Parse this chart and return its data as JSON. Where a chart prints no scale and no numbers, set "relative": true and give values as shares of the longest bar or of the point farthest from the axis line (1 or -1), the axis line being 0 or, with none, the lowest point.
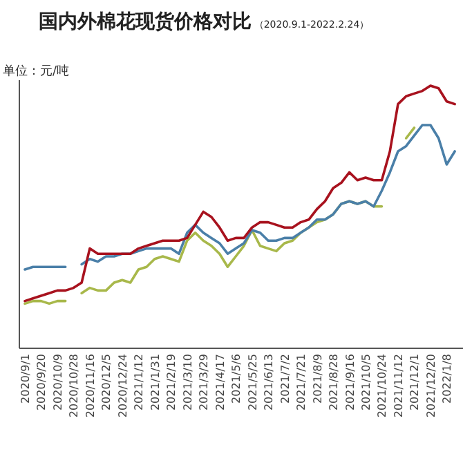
{
  "chart_data": {
    "type": "line",
    "title": "国内外棉花现货价格对比",
    "subtitle": "（2020.9.1-2022.2.24）",
    "ylabel": "单位：元/吨",
    "relative": true,
    "grid": false,
    "marker": "none",
    "line_style": "solid",
    "categories": [
      "2020/9/1",
      null,
      "2020/9/20",
      null,
      "2020/10/9",
      null,
      "2020/10/28",
      null,
      "2020/11/16",
      null,
      "2020/12/5",
      null,
      "2020/12/24",
      null,
      "2021/1/12",
      null,
      "2021/1/31",
      null,
      "2021/2/19",
      null,
      "2021/3/10",
      null,
      "2021/3/29",
      null,
      "2021/4/17",
      null,
      "2021/5/6",
      null,
      "2021/5/25",
      null,
      "2021/6/13",
      null,
      "2021/7/2",
      null,
      "2021/7/21",
      null,
      "2021/8/9",
      null,
      "2021/8/28",
      null,
      "2021/9/16",
      null,
      "2021/10/5",
      null,
      "2021/10/24",
      null,
      "2021/11/12",
      null,
      "2021/12/1",
      null,
      "2021/12/20",
      null,
      "2022/1/8",
      null
    ],
    "series": [
      {
        "color": "#a8121e",
        "values": [
          0.18,
          0.19,
          0.2,
          0.21,
          0.22,
          0.22,
          0.23,
          0.25,
          0.38,
          0.36,
          0.36,
          0.36,
          0.36,
          0.36,
          0.38,
          0.39,
          0.4,
          0.41,
          0.41,
          0.41,
          0.42,
          0.47,
          0.52,
          0.5,
          0.46,
          0.41,
          0.42,
          0.42,
          0.46,
          0.48,
          0.48,
          0.47,
          0.46,
          0.46,
          0.48,
          0.49,
          0.53,
          0.56,
          0.61,
          0.63,
          0.67,
          0.64,
          0.65,
          0.64,
          0.64,
          0.75,
          0.93,
          0.96,
          0.97,
          0.98,
          1,
          0.99,
          0.94,
          0.93
        ]
      },
      {
        "color": "#4a7fa8",
        "values": [
          0.3,
          0.31,
          0.31,
          0.31,
          0.31,
          0.31,
          null,
          0.32,
          0.34,
          0.33,
          0.35,
          0.35,
          0.36,
          0.36,
          0.37,
          0.38,
          0.38,
          0.38,
          0.38,
          0.36,
          0.44,
          0.47,
          0.44,
          0.42,
          0.4,
          0.36,
          0.38,
          0.4,
          0.45,
          0.44,
          0.41,
          0.41,
          0.42,
          0.42,
          0.44,
          0.46,
          0.49,
          0.49,
          0.51,
          0.55,
          0.56,
          0.55,
          0.56,
          0.54,
          0.6,
          0.67,
          0.75,
          0.77,
          0.81,
          0.85,
          0.85,
          0.8,
          0.7,
          0.75
        ]
      },
      {
        "color": "#a8b84a",
        "values": [
          0.17,
          0.18,
          0.18,
          0.17,
          0.18,
          0.18,
          null,
          0.21,
          0.23,
          0.22,
          0.22,
          0.25,
          0.26,
          0.25,
          0.3,
          0.31,
          0.34,
          0.35,
          0.34,
          0.33,
          0.41,
          0.44,
          0.41,
          0.39,
          0.36,
          0.31,
          0.35,
          0.39,
          0.45,
          0.39,
          0.38,
          0.37,
          0.4,
          0.41,
          0.44,
          0.46,
          0.48,
          0.49,
          0.51,
          0.55,
          0.56,
          0.55,
          0.56,
          0.54,
          0.54,
          null,
          null,
          0.8,
          0.84,
          null,
          null,
          null,
          null,
          null
        ]
      }
    ]
  }
}
